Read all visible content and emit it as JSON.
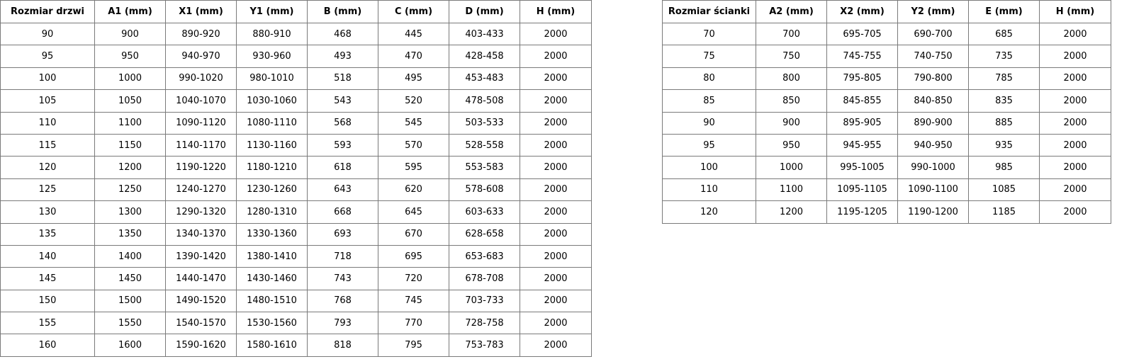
{
  "doors_table": {
    "headers": [
      "Rozmiar drzwi",
      "A1 (mm)",
      "X1 (mm)",
      "Y1 (mm)",
      "B (mm)",
      "C (mm)",
      "D (mm)",
      "H (mm)"
    ],
    "rows": [
      [
        "90",
        "900",
        "890-920",
        "880-910",
        "468",
        "445",
        "403-433",
        "2000"
      ],
      [
        "95",
        "950",
        "940-970",
        "930-960",
        "493",
        "470",
        "428-458",
        "2000"
      ],
      [
        "100",
        "1000",
        "990-1020",
        "980-1010",
        "518",
        "495",
        "453-483",
        "2000"
      ],
      [
        "105",
        "1050",
        "1040-1070",
        "1030-1060",
        "543",
        "520",
        "478-508",
        "2000"
      ],
      [
        "110",
        "1100",
        "1090-1120",
        "1080-1110",
        "568",
        "545",
        "503-533",
        "2000"
      ],
      [
        "115",
        "1150",
        "1140-1170",
        "1130-1160",
        "593",
        "570",
        "528-558",
        "2000"
      ],
      [
        "120",
        "1200",
        "1190-1220",
        "1180-1210",
        "618",
        "595",
        "553-583",
        "2000"
      ],
      [
        "125",
        "1250",
        "1240-1270",
        "1230-1260",
        "643",
        "620",
        "578-608",
        "2000"
      ],
      [
        "130",
        "1300",
        "1290-1320",
        "1280-1310",
        "668",
        "645",
        "603-633",
        "2000"
      ],
      [
        "135",
        "1350",
        "1340-1370",
        "1330-1360",
        "693",
        "670",
        "628-658",
        "2000"
      ],
      [
        "140",
        "1400",
        "1390-1420",
        "1380-1410",
        "718",
        "695",
        "653-683",
        "2000"
      ],
      [
        "145",
        "1450",
        "1440-1470",
        "1430-1460",
        "743",
        "720",
        "678-708",
        "2000"
      ],
      [
        "150",
        "1500",
        "1490-1520",
        "1480-1510",
        "768",
        "745",
        "703-733",
        "2000"
      ],
      [
        "155",
        "1550",
        "1540-1570",
        "1530-1560",
        "793",
        "770",
        "728-758",
        "2000"
      ],
      [
        "160",
        "1600",
        "1590-1620",
        "1580-1610",
        "818",
        "795",
        "753-783",
        "2000"
      ]
    ]
  },
  "wall_table": {
    "headers": [
      "Rozmiar ścianki",
      "A2 (mm)",
      "X2 (mm)",
      "Y2 (mm)",
      "E (mm)",
      "H (mm)"
    ],
    "rows": [
      [
        "70",
        "700",
        "695-705",
        "690-700",
        "685",
        "2000"
      ],
      [
        "75",
        "750",
        "745-755",
        "740-750",
        "735",
        "2000"
      ],
      [
        "80",
        "800",
        "795-805",
        "790-800",
        "785",
        "2000"
      ],
      [
        "85",
        "850",
        "845-855",
        "840-850",
        "835",
        "2000"
      ],
      [
        "90",
        "900",
        "895-905",
        "890-900",
        "885",
        "2000"
      ],
      [
        "95",
        "950",
        "945-955",
        "940-950",
        "935",
        "2000"
      ],
      [
        "100",
        "1000",
        "995-1005",
        "990-1000",
        "985",
        "2000"
      ],
      [
        "110",
        "1100",
        "1095-1105",
        "1090-1100",
        "1085",
        "2000"
      ],
      [
        "120",
        "1200",
        "1195-1205",
        "1190-1200",
        "1185",
        "2000"
      ]
    ]
  }
}
